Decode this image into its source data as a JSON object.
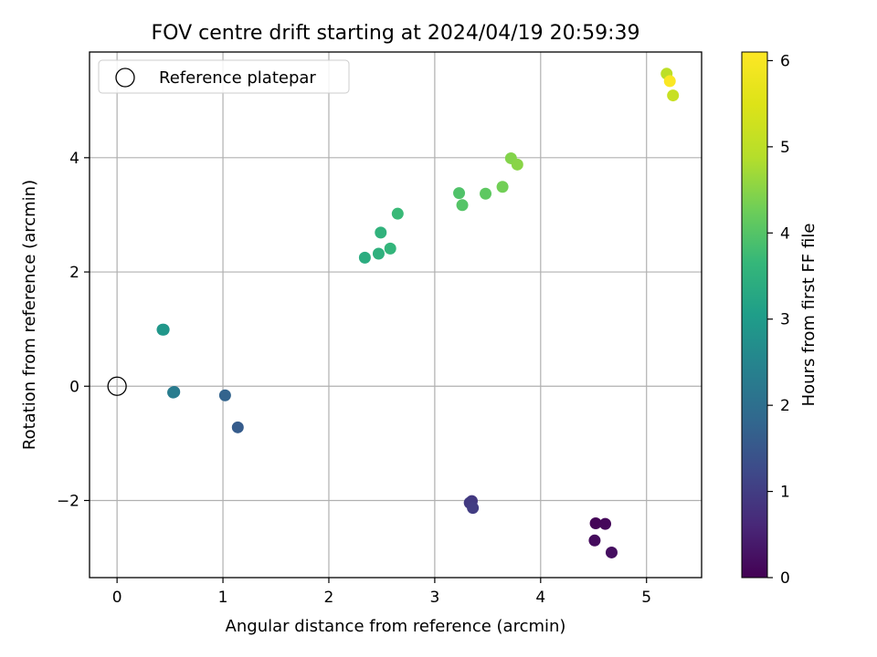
{
  "chart_data": {
    "type": "scatter",
    "title": "FOV centre drift starting at 2024/04/19 20:59:39",
    "xlabel": "Angular distance from reference (arcmin)",
    "ylabel": "Rotation from reference (arcmin)",
    "xlim": [
      -0.26,
      5.52
    ],
    "ylim": [
      -3.35,
      5.85
    ],
    "xticks": [
      0,
      1,
      2,
      3,
      4,
      5
    ],
    "yticks": [
      -2,
      0,
      2,
      4
    ],
    "grid": true,
    "legend": {
      "placement": "top-left",
      "entries": [
        "Reference platepar"
      ]
    },
    "colorbar": {
      "label": "Hours from first FF file",
      "range": [
        0,
        6.1
      ],
      "ticks": [
        0,
        1,
        2,
        3,
        4,
        5,
        6
      ],
      "colormap": "viridis"
    },
    "reference_point": {
      "x": 0,
      "y": 0,
      "label": "Reference platepar"
    },
    "points": [
      {
        "x": 4.52,
        "y": -2.4,
        "c": 0.05
      },
      {
        "x": 4.61,
        "y": -2.41,
        "c": 0.1
      },
      {
        "x": 4.51,
        "y": -2.7,
        "c": 0.15
      },
      {
        "x": 4.67,
        "y": -2.91,
        "c": 0.2
      },
      {
        "x": 3.35,
        "y": -2.01,
        "c": 0.9
      },
      {
        "x": 3.33,
        "y": -2.04,
        "c": 0.95
      },
      {
        "x": 3.36,
        "y": -2.13,
        "c": 1.0
      },
      {
        "x": 1.14,
        "y": -0.72,
        "c": 1.6
      },
      {
        "x": 1.02,
        "y": -0.16,
        "c": 1.75
      },
      {
        "x": 0.54,
        "y": -0.1,
        "c": 2.2
      },
      {
        "x": 0.53,
        "y": -0.11,
        "c": 2.3
      },
      {
        "x": 0.44,
        "y": 0.99,
        "c": 2.8
      },
      {
        "x": 0.43,
        "y": 0.99,
        "c": 2.9
      },
      {
        "x": 2.34,
        "y": 2.25,
        "c": 3.4
      },
      {
        "x": 2.47,
        "y": 2.32,
        "c": 3.5
      },
      {
        "x": 2.49,
        "y": 2.69,
        "c": 3.55
      },
      {
        "x": 2.58,
        "y": 2.41,
        "c": 3.6
      },
      {
        "x": 2.65,
        "y": 3.02,
        "c": 3.7
      },
      {
        "x": 3.23,
        "y": 3.38,
        "c": 3.95
      },
      {
        "x": 3.26,
        "y": 3.17,
        "c": 4.0
      },
      {
        "x": 3.48,
        "y": 3.37,
        "c": 4.1
      },
      {
        "x": 3.64,
        "y": 3.49,
        "c": 4.3
      },
      {
        "x": 3.72,
        "y": 3.99,
        "c": 4.45
      },
      {
        "x": 3.78,
        "y": 3.88,
        "c": 4.5
      },
      {
        "x": 5.19,
        "y": 5.47,
        "c": 5.0
      },
      {
        "x": 5.25,
        "y": 5.09,
        "c": 5.15
      },
      {
        "x": 5.22,
        "y": 5.34,
        "c": 6.05
      }
    ]
  }
}
